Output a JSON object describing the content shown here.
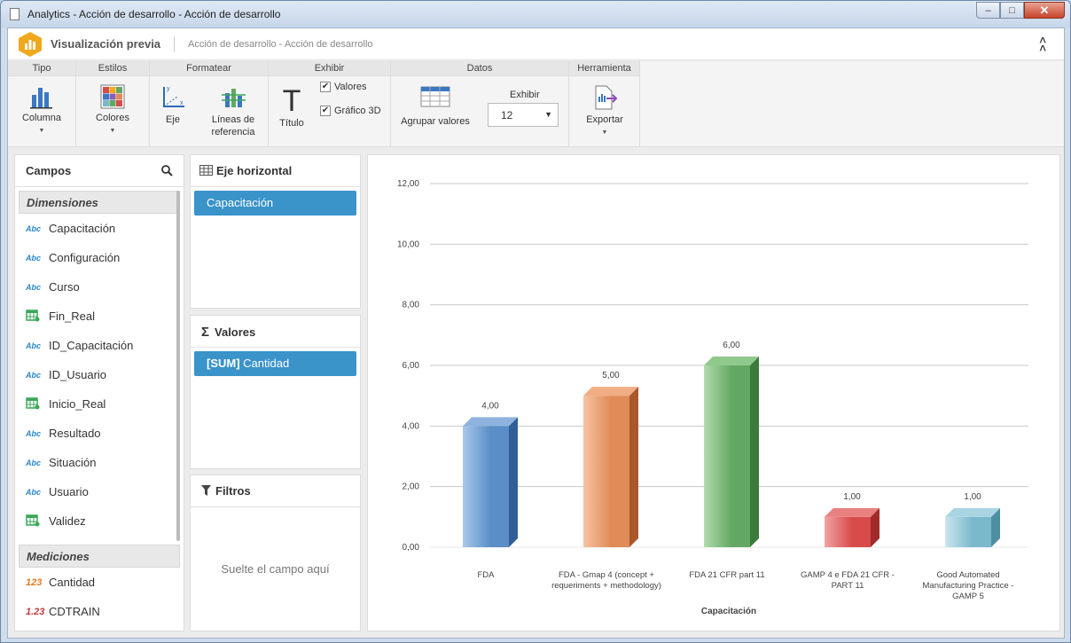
{
  "window": {
    "title": "Analytics - Acción de desarrollo - Acción de desarrollo"
  },
  "header": {
    "title": "Visualización previa",
    "subtitle": "Acción de desarrollo - Acción de desarrollo"
  },
  "ribbon": {
    "groups": {
      "tipo": "Tipo",
      "estilos": "Estilos",
      "formatear": "Formatear",
      "exhibir": "Exhibir",
      "datos": "Datos",
      "herramienta": "Herramienta"
    },
    "columna": "Columna",
    "colores": "Colores",
    "eje": "Eje",
    "lineas": "Líneas de referencia",
    "titulo": "Título",
    "valores_chk": "Valores",
    "grafico3d_chk": "Gráfico 3D",
    "valores_checked": true,
    "grafico3d_checked": true,
    "agrupar": "Agrupar valores",
    "exhibir_label": "Exhibir",
    "exhibir_value": "12",
    "exportar": "Exportar"
  },
  "campos": {
    "title": "Campos",
    "dimensiones_title": "Dimensiones",
    "dimensiones": [
      {
        "label": "Capacitación",
        "icon": "abc"
      },
      {
        "label": "Configuración",
        "icon": "abc"
      },
      {
        "label": "Curso",
        "icon": "abc"
      },
      {
        "label": "Fin_Real",
        "icon": "calendar"
      },
      {
        "label": "ID_Capacitación",
        "icon": "abc"
      },
      {
        "label": "ID_Usuario",
        "icon": "abc"
      },
      {
        "label": "Inicio_Real",
        "icon": "calendar"
      },
      {
        "label": "Resultado",
        "icon": "abc"
      },
      {
        "label": "Situación",
        "icon": "abc"
      },
      {
        "label": "Usuario",
        "icon": "abc"
      },
      {
        "label": "Validez",
        "icon": "calendar"
      }
    ],
    "mediciones_title": "Mediciones",
    "mediciones": [
      {
        "label": "Cantidad",
        "icon": "123"
      },
      {
        "label": "CDTRAIN",
        "icon": "1.23"
      }
    ],
    "icon_text": {
      "abc": "Abc",
      "n123": "123",
      "n1_23": "1.23"
    }
  },
  "eje_horizontal": {
    "title": "Eje horizontal",
    "chip": "Capacitación"
  },
  "valores": {
    "title": "Valores",
    "chip_prefix": "[SUM]",
    "chip_field": "Cantidad"
  },
  "filtros": {
    "title": "Filtros",
    "placeholder": "Suelte el campo aquí"
  },
  "colors": {
    "accent": "#3a93c9",
    "logo": "#f0a81c"
  },
  "chart_data": {
    "type": "bar",
    "xlabel": "Capacitación",
    "ylabel": "",
    "ylim": [
      0,
      12
    ],
    "yticks": [
      "0,00",
      "2,00",
      "4,00",
      "6,00",
      "8,00",
      "10,00",
      "12,00"
    ],
    "categories": [
      "FDA",
      "FDA - Gmap 4 (concept + requeriments + methodology)",
      "FDA 21 CFR part 11",
      "GAMP 4 e FDA 21 CFR - PART 11",
      "Good Automated Manufacturing Practice - GAMP 5"
    ],
    "category_lines": [
      [
        "FDA"
      ],
      [
        "FDA - Gmap 4 (concept +",
        "requeriments + methodology)"
      ],
      [
        "FDA 21 CFR part 11"
      ],
      [
        "GAMP 4 e FDA 21 CFR -",
        "PART 11"
      ],
      [
        "Good Automated",
        "Manufacturing Practice -",
        "GAMP 5"
      ]
    ],
    "values": [
      4,
      5,
      6,
      1,
      1
    ],
    "value_labels": [
      "4,00",
      "5,00",
      "6,00",
      "1,00",
      "1,00"
    ],
    "bar_colors": [
      {
        "front": "#5b8ec7",
        "light": "#a9c8ea",
        "side": "#2f5f96",
        "top": "#8fb3de"
      },
      {
        "front": "#e08b58",
        "light": "#f6c3a2",
        "side": "#a9582a",
        "top": "#f2ad84"
      },
      {
        "front": "#62a862",
        "light": "#b4dcae",
        "side": "#3b7a3b",
        "top": "#8fc98c"
      },
      {
        "front": "#d84b4b",
        "light": "#f0a3a3",
        "side": "#a12a2a",
        "top": "#e88080"
      },
      {
        "front": "#7ab8cc",
        "light": "#cbe6ee",
        "side": "#4e8ea3",
        "top": "#a9d5e2"
      }
    ],
    "grid": true,
    "legend": "none"
  }
}
